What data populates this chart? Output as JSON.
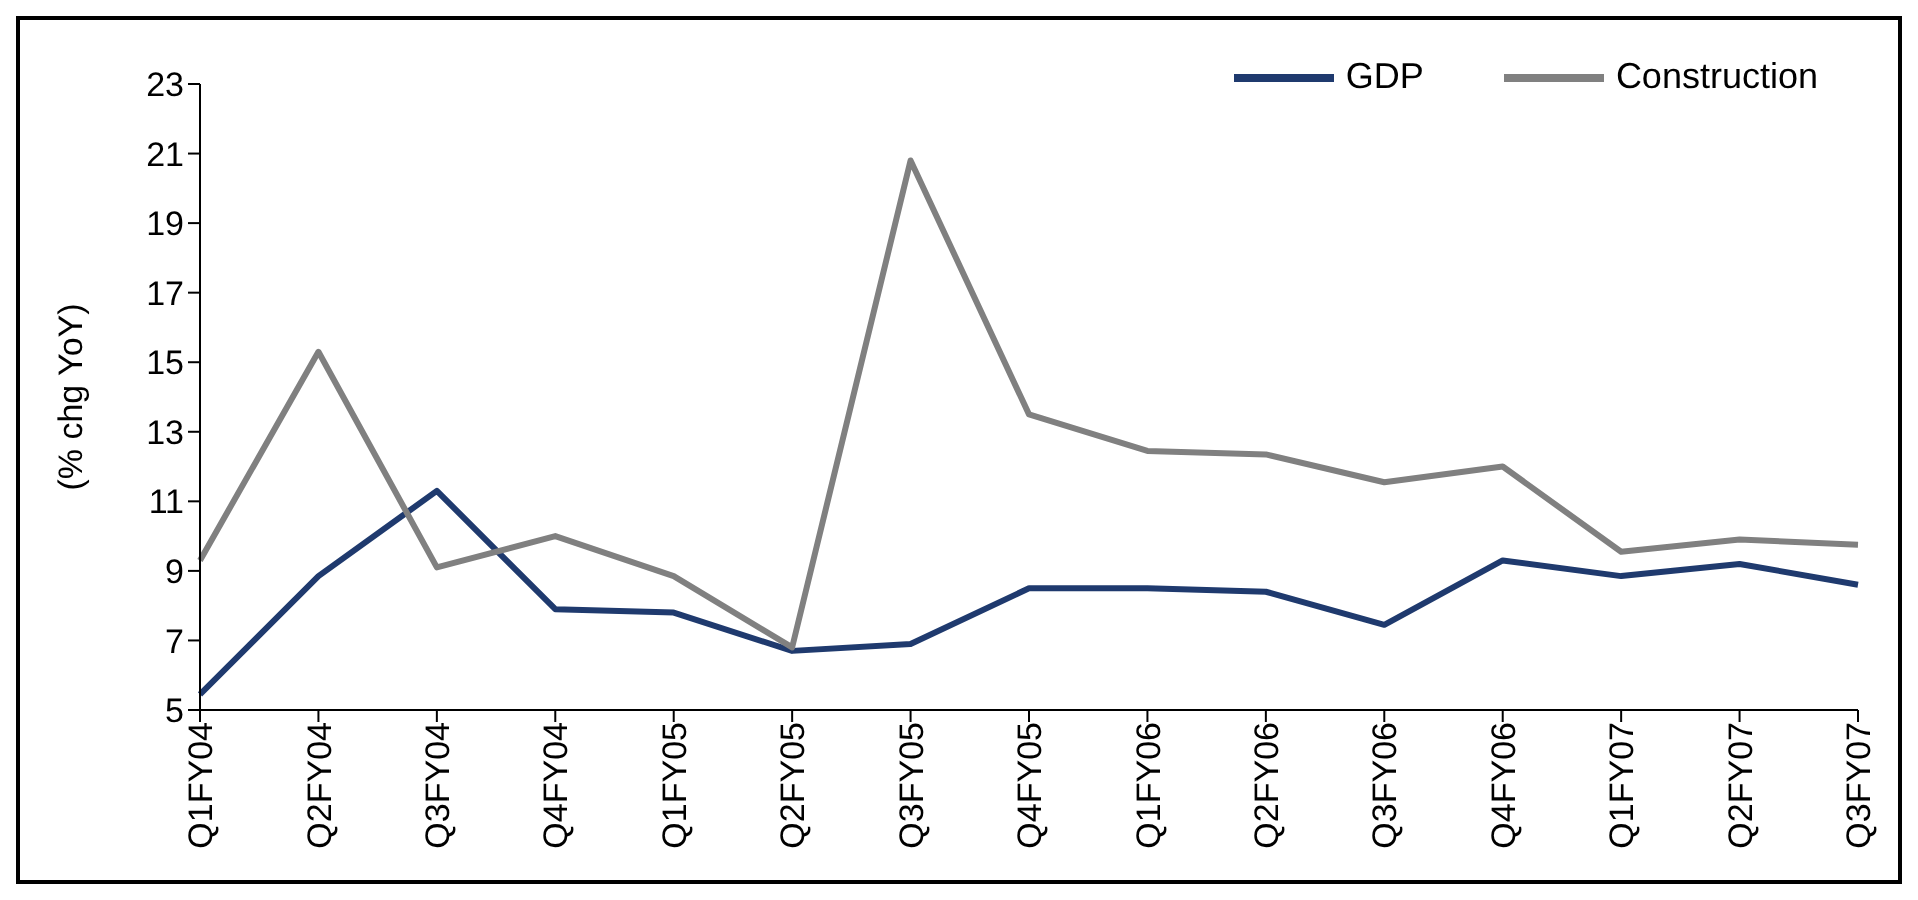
{
  "chart_data": {
    "type": "line",
    "ylabel": "(% chg YoY)",
    "categories": [
      "Q1FY04",
      "Q2FY04",
      "Q3FY04",
      "Q4FY04",
      "Q1FY05",
      "Q2FY05",
      "Q3FY05",
      "Q4FY05",
      "Q1FY06",
      "Q2FY06",
      "Q3FY06",
      "Q4FY06",
      "Q1FY07",
      "Q2FY07",
      "Q3FY07"
    ],
    "series": [
      {
        "name": "GDP",
        "color": "#1f3a6e",
        "values": [
          5.45,
          8.85,
          11.3,
          7.9,
          7.8,
          6.7,
          6.9,
          8.5,
          8.5,
          8.4,
          7.45,
          9.3,
          8.85,
          9.2,
          8.6
        ]
      },
      {
        "name": "Construction",
        "color": "#808080",
        "values": [
          9.3,
          15.3,
          9.1,
          10.0,
          8.85,
          6.8,
          20.8,
          13.5,
          12.45,
          12.35,
          11.55,
          12.0,
          9.55,
          9.9,
          9.75
        ]
      }
    ],
    "ylim": [
      5,
      23
    ],
    "yticks": [
      5,
      7,
      9,
      11,
      13,
      15,
      17,
      19,
      21,
      23
    ],
    "grid": false,
    "legend": "top right",
    "marker": "none",
    "line_style": "solid"
  }
}
